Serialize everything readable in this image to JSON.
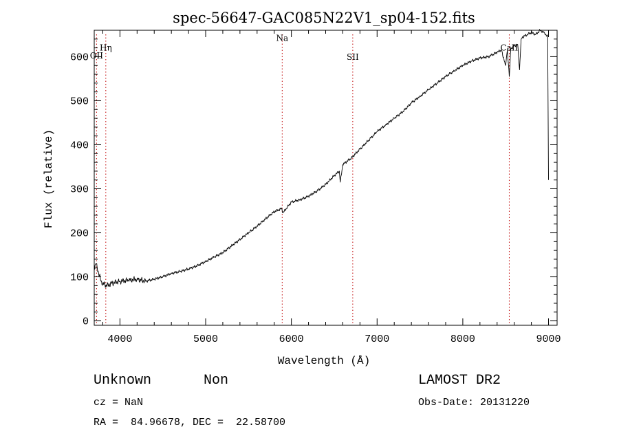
{
  "chart_data": {
    "type": "line",
    "title": "spec-56647-GAC085N22V1_sp04-152.fits",
    "xlabel": "Wavelength (Å)",
    "ylabel": "Flux (relative)",
    "xlim": [
      3700,
      9100
    ],
    "ylim": [
      -10,
      660
    ],
    "xticks": [
      4000,
      5000,
      6000,
      7000,
      8000,
      9000
    ],
    "yticks": [
      0,
      100,
      200,
      300,
      400,
      500,
      600
    ],
    "x_minor_step": 200,
    "y_minor_step": 20,
    "grid": false,
    "line_color": "#000000",
    "marker_color": "#c00000",
    "series": [
      {
        "x": [
          3700,
          3720,
          3750,
          3780,
          3800,
          3850,
          3900,
          4000,
          4100,
          4200,
          4300,
          4400,
          4500,
          4600,
          4700,
          4800,
          4900,
          5000,
          5100,
          5200,
          5300,
          5400,
          5500,
          5600,
          5700,
          5800,
          5890,
          5900,
          6000,
          6100,
          6200,
          6300,
          6400,
          6500,
          6560,
          6570,
          6600,
          6700,
          6800,
          6900,
          7000,
          7100,
          7200,
          7300,
          7400,
          7500,
          7600,
          7700,
          7800,
          7900,
          8000,
          8100,
          8200,
          8300,
          8400,
          8450,
          8498,
          8520,
          8542,
          8560,
          8600,
          8640,
          8662,
          8680,
          8700,
          8750,
          8800,
          8850,
          8900,
          8950,
          8990,
          9000
        ],
        "y": [
          120,
          130,
          110,
          90,
          85,
          80,
          85,
          90,
          92,
          95,
          90,
          95,
          100,
          108,
          112,
          118,
          125,
          135,
          145,
          155,
          170,
          185,
          200,
          215,
          232,
          248,
          255,
          245,
          270,
          275,
          283,
          295,
          310,
          330,
          340,
          315,
          355,
          370,
          390,
          410,
          430,
          445,
          460,
          475,
          495,
          510,
          525,
          540,
          555,
          568,
          580,
          590,
          597,
          600,
          610,
          615,
          580,
          615,
          555,
          618,
          625,
          628,
          570,
          640,
          645,
          650,
          655,
          650,
          660,
          655,
          645,
          320
        ]
      }
    ],
    "line_markers": [
      {
        "label": "Hη",
        "x": 3835,
        "label_y": 614
      },
      {
        "label": "OII",
        "x": 3727,
        "label_y": 596
      },
      {
        "label": "Na",
        "x": 5893,
        "label_y": 636
      },
      {
        "label": "SII",
        "x": 6716,
        "label_y": 593
      },
      {
        "label": "CaII",
        "x": 8542,
        "label_y": 614
      }
    ]
  },
  "footer": {
    "class_name": "Unknown",
    "subclass": "Non",
    "release": "LAMOST DR2",
    "cz": "cz = NaN",
    "obs_date": "Obs-Date: 20131220",
    "coords": "RA =  84.96678, DEC =  22.58700"
  }
}
